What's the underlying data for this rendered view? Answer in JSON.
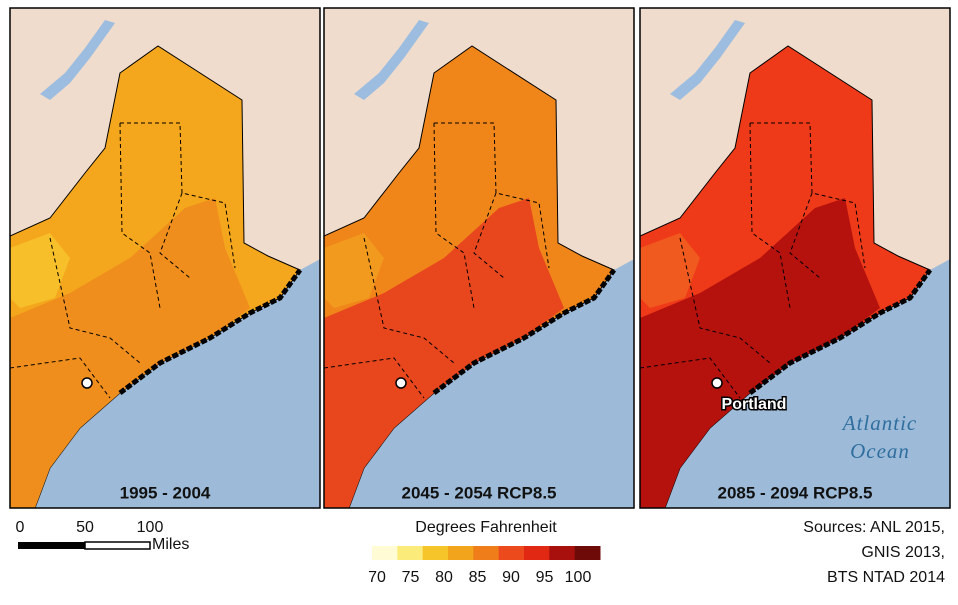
{
  "panels": [
    {
      "label": "1995 - 2004"
    },
    {
      "label": "2045 - 2054 RCP8.5"
    },
    {
      "label": "2085 - 2094 RCP8.5"
    }
  ],
  "annotations": {
    "city": "Portland",
    "ocean_line1": "Atlantic",
    "ocean_line2": "Ocean"
  },
  "scale_bar": {
    "ticks": [
      "0",
      "50",
      "100"
    ],
    "unit": "Miles"
  },
  "legend": {
    "title": "Degrees Fahrenheit",
    "colors": [
      "#fffbd4",
      "#fbeb7a",
      "#f6c52a",
      "#f3a41d",
      "#ef7e1a",
      "#ec4a1d",
      "#e02813",
      "#a8100d",
      "#6e0a08"
    ],
    "ticks": [
      70,
      75,
      80,
      85,
      90,
      95,
      100
    ]
  },
  "sources": [
    "Sources: ANL 2015,",
    "GNIS 2013,",
    "BTS NTAD 2014"
  ]
}
